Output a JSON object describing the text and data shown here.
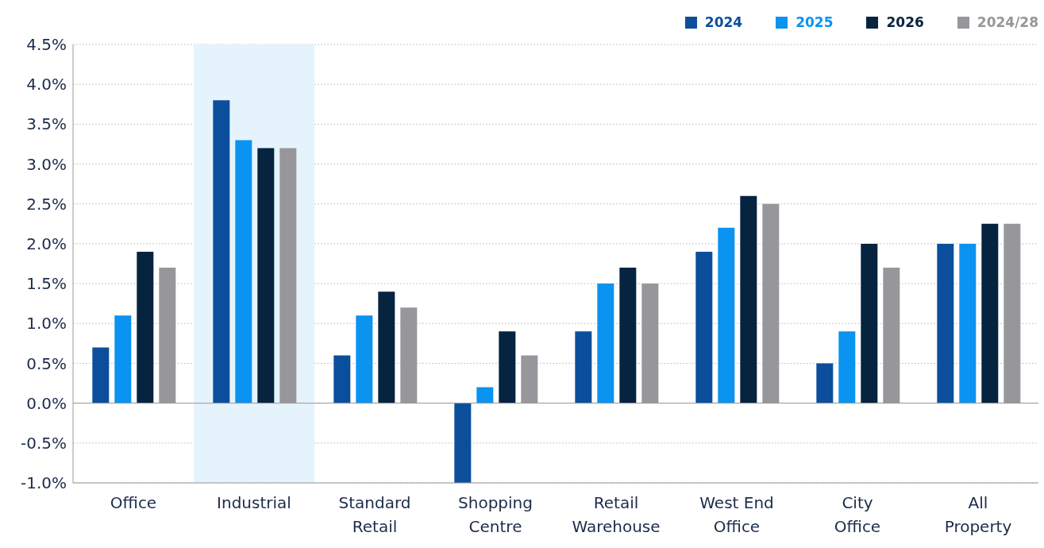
{
  "chart_data": {
    "type": "bar",
    "categories": [
      "Office",
      "Industrial",
      "Standard Retail",
      "Shopping Centre",
      "Retail Warehouse",
      "West End Office",
      "City Office",
      "All Property"
    ],
    "series": [
      {
        "name": "2024",
        "color": "#0b4f9c",
        "values": [
          0.7,
          3.8,
          0.6,
          -1.0,
          0.9,
          1.9,
          0.5,
          2.0
        ]
      },
      {
        "name": "2025",
        "color": "#0a93f0",
        "values": [
          1.1,
          3.3,
          1.1,
          0.2,
          1.5,
          2.2,
          0.9,
          2.0
        ]
      },
      {
        "name": "2026",
        "color": "#06233f",
        "values": [
          1.9,
          3.2,
          1.4,
          0.9,
          1.7,
          2.6,
          2.0,
          2.25
        ]
      },
      {
        "name": "2024/28",
        "color": "#97979b",
        "values": [
          1.7,
          3.2,
          1.2,
          0.6,
          1.5,
          2.5,
          1.7,
          2.25
        ]
      }
    ],
    "ylim": [
      -1.0,
      4.5
    ],
    "yticks": [
      {
        "value": -1.0,
        "label": "-1.0%"
      },
      {
        "value": -0.5,
        "label": "-0.5%"
      },
      {
        "value": 0,
        "label": "0.0%"
      },
      {
        "value": 0.5,
        "label": "0.5%"
      },
      {
        "value": 1.0,
        "label": "1.0%"
      },
      {
        "value": 1.5,
        "label": "1.5%"
      },
      {
        "value": 2.0,
        "label": "2.0%"
      },
      {
        "value": 2.5,
        "label": "2.5%"
      },
      {
        "value": 3.0,
        "label": "3.0%"
      },
      {
        "value": 3.5,
        "label": "3.5%"
      },
      {
        "value": 4.0,
        "label": "4.0%"
      },
      {
        "value": 4.5,
        "label": "4.5%"
      }
    ],
    "grid": "y",
    "legend": "top right",
    "bands": [
      {
        "axis": "x",
        "from": "Industrial",
        "to": "Industrial",
        "color": "#e5f3fc"
      }
    ]
  }
}
